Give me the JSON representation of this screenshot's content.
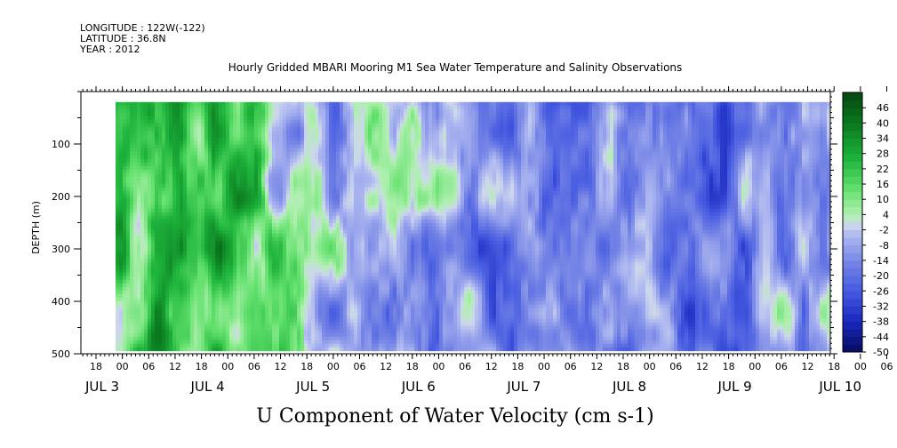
{
  "header": {
    "longitude": "LONGITUDE : 122W(-122)",
    "latitude": "LATITUDE : 36.8N",
    "year": "YEAR : 2012"
  },
  "chart_data": {
    "type": "heatmap",
    "title": "Hourly Gridded MBARI Mooring M1 Sea Water Temperature and Salinity Observations",
    "xlabel": "U Component of Water Velocity (cm s-1)",
    "ylabel": "DEPTH (m)",
    "ylim": [
      500,
      0
    ],
    "y_range_data": [
      20,
      490
    ],
    "x_range_hours": [
      "JUL 3 02:00",
      "JUL 10 12:00"
    ],
    "y_ticks": [
      100,
      200,
      300,
      400,
      500
    ],
    "x_hour_ticks": [
      "18",
      "00",
      "06",
      "12",
      "18",
      "00",
      "06",
      "12",
      "18",
      "00",
      "06",
      "12",
      "18",
      "00",
      "06",
      "12",
      "18",
      "00",
      "06",
      "12",
      "18",
      "00",
      "06",
      "12",
      "18",
      "00",
      "06",
      "12",
      "18",
      "00",
      "06",
      "12"
    ],
    "x_day_labels": [
      "JUL  3",
      "JUL  4",
      "JUL  5",
      "JUL  6",
      "JUL  7",
      "JUL  8",
      "JUL  9",
      "JUL 10"
    ],
    "colorbar": {
      "labels": [
        "46",
        "40",
        "34",
        "28",
        "22",
        "16",
        "10",
        "4",
        "-2",
        "-8",
        "-14",
        "-20",
        "-26",
        "-32",
        "-38",
        "-44",
        "-50"
      ],
      "min": -50,
      "max": 52,
      "step": 3
    },
    "band_profile": [
      {
        "day": "JUL 3 late",
        "dominant": "positive",
        "u": 18
      },
      {
        "day": "JUL 4",
        "dominant": "positive",
        "u": 22
      },
      {
        "day": "JUL 5",
        "dominant": "mixed",
        "u": -4
      },
      {
        "day": "JUL 6",
        "dominant": "mixed",
        "u": -6
      },
      {
        "day": "JUL 7",
        "dominant": "negative",
        "u": -16
      },
      {
        "day": "JUL 8",
        "dominant": "negative",
        "u": -18
      },
      {
        "day": "JUL 9",
        "dominant": "negative",
        "u": -14
      },
      {
        "day": "JUL 10",
        "dominant": "mixed",
        "u": -8
      }
    ]
  }
}
